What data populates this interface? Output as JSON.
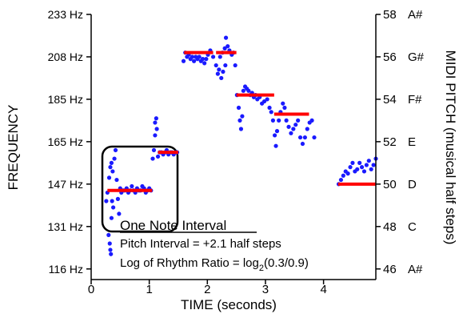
{
  "chart_data": {
    "type": "scatter",
    "title": "",
    "xlabel": "TIME (seconds)",
    "ylabel_left": "FREQUENCY",
    "ylabel_right": "MIDI PITCH (musical half steps)",
    "xlim": [
      0,
      4.9
    ],
    "ylim_midi": [
      45.5,
      58
    ],
    "x_ticks": [
      {
        "v": 0,
        "label": "0"
      },
      {
        "v": 1,
        "label": "1"
      },
      {
        "v": 2,
        "label": "2"
      },
      {
        "v": 3,
        "label": "3"
      },
      {
        "v": 4,
        "label": "4"
      }
    ],
    "left_ticks": [
      {
        "midi": 58,
        "label": "233 Hz"
      },
      {
        "midi": 56,
        "label": "208 Hz"
      },
      {
        "midi": 54,
        "label": "185 Hz"
      },
      {
        "midi": 52,
        "label": "165 Hz"
      },
      {
        "midi": 50,
        "label": "147 Hz"
      },
      {
        "midi": 48,
        "label": "131 Hz"
      },
      {
        "midi": 46,
        "label": "116 Hz"
      }
    ],
    "right_ticks": [
      {
        "midi": 58,
        "num": "58",
        "note": "A#"
      },
      {
        "midi": 56,
        "num": "56",
        "note": "G#"
      },
      {
        "midi": 54,
        "num": "54",
        "note": "F#"
      },
      {
        "midi": 52,
        "num": "52",
        "note": "E"
      },
      {
        "midi": 50,
        "num": "50",
        "note": "D"
      },
      {
        "midi": 48,
        "num": "48",
        "note": "C"
      },
      {
        "midi": 46,
        "num": "46",
        "note": "A#"
      }
    ],
    "note_lines": [
      {
        "x0": 0.28,
        "x1": 1.05,
        "midi": 49.7
      },
      {
        "x0": 1.15,
        "x1": 1.5,
        "midi": 51.5
      },
      {
        "x0": 1.6,
        "x1": 2.1,
        "midi": 56.2
      },
      {
        "x0": 2.15,
        "x1": 2.5,
        "midi": 56.2
      },
      {
        "x0": 2.5,
        "x1": 3.15,
        "midi": 54.2
      },
      {
        "x0": 3.15,
        "x1": 3.75,
        "midi": 53.3
      },
      {
        "x0": 4.25,
        "x1": 4.9,
        "midi": 50
      }
    ],
    "points": [
      [
        0.28,
        49.6
      ],
      [
        0.31,
        50.3
      ],
      [
        0.33,
        50.8
      ],
      [
        0.35,
        51.0
      ],
      [
        0.37,
        50.6
      ],
      [
        0.4,
        51.2
      ],
      [
        0.42,
        51.6
      ],
      [
        0.44,
        50.2
      ],
      [
        0.46,
        49.3
      ],
      [
        0.48,
        48.6
      ],
      [
        0.5,
        49.8
      ],
      [
        0.52,
        49.6
      ],
      [
        0.55,
        49.7
      ],
      [
        0.58,
        49.7
      ],
      [
        0.61,
        49.8
      ],
      [
        0.64,
        49.6
      ],
      [
        0.67,
        49.7
      ],
      [
        0.7,
        49.9
      ],
      [
        0.73,
        49.7
      ],
      [
        0.76,
        49.6
      ],
      [
        0.79,
        49.8
      ],
      [
        0.82,
        49.7
      ],
      [
        0.85,
        49.7
      ],
      [
        0.88,
        49.9
      ],
      [
        0.91,
        49.8
      ],
      [
        0.94,
        49.6
      ],
      [
        0.97,
        49.7
      ],
      [
        1.0,
        49.8
      ],
      [
        1.03,
        49.7
      ],
      [
        0.3,
        47.6
      ],
      [
        0.32,
        47.2
      ],
      [
        0.33,
        46.9
      ],
      [
        0.34,
        46.7
      ],
      [
        0.35,
        48.4
      ],
      [
        0.36,
        49.2
      ],
      [
        0.38,
        48.9
      ],
      [
        0.26,
        49.2
      ],
      [
        1.06,
        51.2
      ],
      [
        1.08,
        51.6
      ],
      [
        1.1,
        52.3
      ],
      [
        1.1,
        52.9
      ],
      [
        1.12,
        53.1
      ],
      [
        1.13,
        52.6
      ],
      [
        1.15,
        51.3
      ],
      [
        1.18,
        51.5
      ],
      [
        1.21,
        51.5
      ],
      [
        1.24,
        51.4
      ],
      [
        1.27,
        51.5
      ],
      [
        1.3,
        51.6
      ],
      [
        1.33,
        51.4
      ],
      [
        1.36,
        51.5
      ],
      [
        1.39,
        51.5
      ],
      [
        1.42,
        51.4
      ],
      [
        1.45,
        51.5
      ],
      [
        1.48,
        51.5
      ],
      [
        1.59,
        55.8
      ],
      [
        1.62,
        56.2
      ],
      [
        1.65,
        56.0
      ],
      [
        1.68,
        56.1
      ],
      [
        1.71,
        55.9
      ],
      [
        1.74,
        56.0
      ],
      [
        1.77,
        55.8
      ],
      [
        1.8,
        56.0
      ],
      [
        1.83,
        55.9
      ],
      [
        1.86,
        56.0
      ],
      [
        1.89,
        55.8
      ],
      [
        1.92,
        55.9
      ],
      [
        1.95,
        55.7
      ],
      [
        1.98,
        55.9
      ],
      [
        2.01,
        56.1
      ],
      [
        2.05,
        56.3
      ],
      [
        2.1,
        56.0
      ],
      [
        2.15,
        55.6
      ],
      [
        2.18,
        55.2
      ],
      [
        2.22,
        56.0
      ],
      [
        2.26,
        56.2
      ],
      [
        2.3,
        56.4
      ],
      [
        2.32,
        56.9
      ],
      [
        2.35,
        56.5
      ],
      [
        2.38,
        56.3
      ],
      [
        2.42,
        56.1
      ],
      [
        2.45,
        56.2
      ],
      [
        2.48,
        55.6
      ],
      [
        2.2,
        55.4
      ],
      [
        2.24,
        55.0
      ],
      [
        2.27,
        55.3
      ],
      [
        2.31,
        55.6
      ],
      [
        2.51,
        54.2
      ],
      [
        2.54,
        53.6
      ],
      [
        2.56,
        53.0
      ],
      [
        2.58,
        52.6
      ],
      [
        2.6,
        53.2
      ],
      [
        2.62,
        54.4
      ],
      [
        2.65,
        54.6
      ],
      [
        2.68,
        54.5
      ],
      [
        2.71,
        54.4
      ],
      [
        2.74,
        54.2
      ],
      [
        2.77,
        54.3
      ],
      [
        2.8,
        54.1
      ],
      [
        2.83,
        54.2
      ],
      [
        2.86,
        54.0
      ],
      [
        2.9,
        54.1
      ],
      [
        2.94,
        53.8
      ],
      [
        2.98,
        53.9
      ],
      [
        3.03,
        54.0
      ],
      [
        3.07,
        53.6
      ],
      [
        3.1,
        53.4
      ],
      [
        3.13,
        53.0
      ],
      [
        3.16,
        52.3
      ],
      [
        3.18,
        51.8
      ],
      [
        3.2,
        52.5
      ],
      [
        3.23,
        53.0
      ],
      [
        3.26,
        53.4
      ],
      [
        3.3,
        53.8
      ],
      [
        3.33,
        53.6
      ],
      [
        3.36,
        53.0
      ],
      [
        3.4,
        52.7
      ],
      [
        3.44,
        52.4
      ],
      [
        3.48,
        52.6
      ],
      [
        3.52,
        52.8
      ],
      [
        3.56,
        53.0
      ],
      [
        3.6,
        52.2
      ],
      [
        3.64,
        51.9
      ],
      [
        3.68,
        52.2
      ],
      [
        3.72,
        52.6
      ],
      [
        3.76,
        52.9
      ],
      [
        3.8,
        53.0
      ],
      [
        3.84,
        52.2
      ],
      [
        4.26,
        50.0
      ],
      [
        4.3,
        50.2
      ],
      [
        4.34,
        50.4
      ],
      [
        4.38,
        50.6
      ],
      [
        4.42,
        50.5
      ],
      [
        4.46,
        50.8
      ],
      [
        4.5,
        51.0
      ],
      [
        4.54,
        50.6
      ],
      [
        4.58,
        50.7
      ],
      [
        4.62,
        51.0
      ],
      [
        4.66,
        50.8
      ],
      [
        4.7,
        50.6
      ],
      [
        4.74,
        50.9
      ],
      [
        4.78,
        51.1
      ],
      [
        4.82,
        50.7
      ],
      [
        4.86,
        50.9
      ],
      [
        4.9,
        51.2
      ]
    ],
    "annotation": {
      "title": "One Note Interval",
      "line1": "Pitch Interval = +2.1 half steps",
      "line2_prefix": "Log of Rhythm Ratio = log",
      "line2_sub": "2",
      "line2_suffix": "(0.3/0.9)"
    },
    "colors": {
      "points": "#1a1aff",
      "note_lines": "#ff0000",
      "axes": "#000000"
    }
  }
}
